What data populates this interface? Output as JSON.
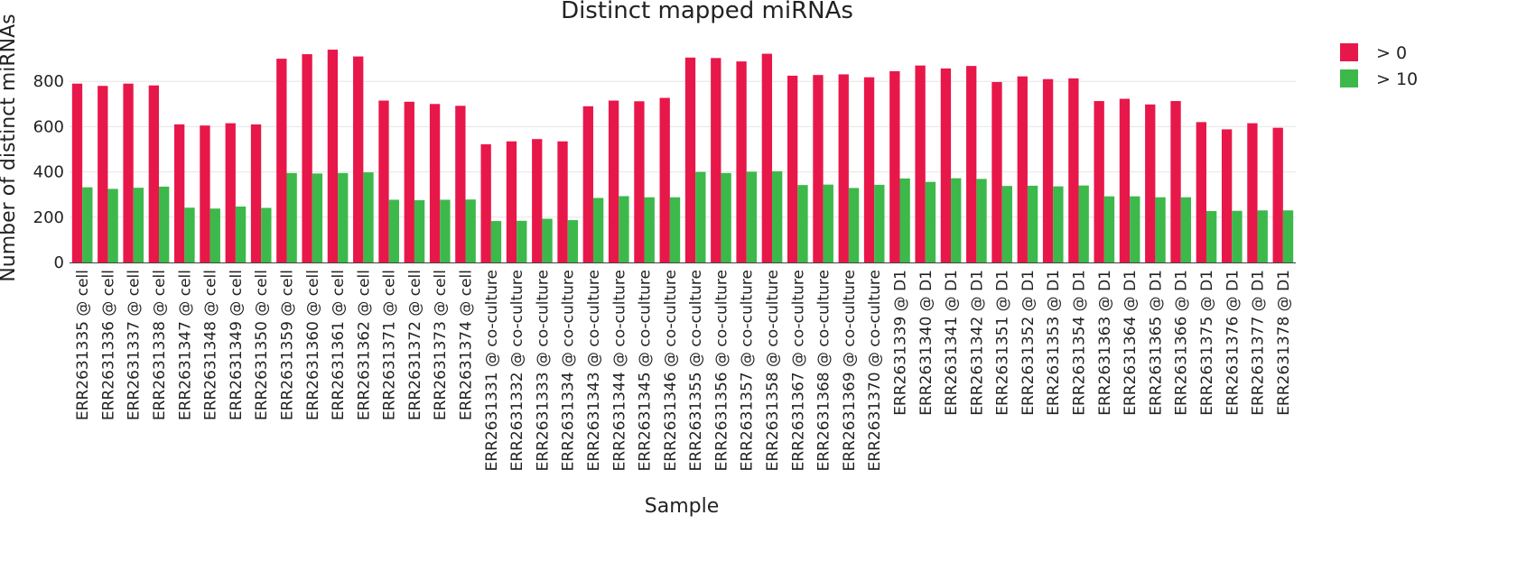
{
  "chart_data": {
    "type": "bar",
    "title": "Distinct mapped miRNAs",
    "xlabel": "Sample",
    "ylabel": "Number of distinct miRNAs",
    "ylim": [
      0,
      1000
    ],
    "yticks": [
      0,
      200,
      400,
      600,
      800
    ],
    "grid": true,
    "legend_position": "top-right",
    "categories": [
      "ERR2631335 @ cell",
      "ERR2631336 @ cell",
      "ERR2631337 @ cell",
      "ERR2631338 @ cell",
      "ERR2631347 @ cell",
      "ERR2631348 @ cell",
      "ERR2631349 @ cell",
      "ERR2631350 @ cell",
      "ERR2631359 @ cell",
      "ERR2631360 @ cell",
      "ERR2631361 @ cell",
      "ERR2631362 @ cell",
      "ERR2631371 @ cell",
      "ERR2631372 @ cell",
      "ERR2631373 @ cell",
      "ERR2631374 @ cell",
      "ERR2631331 @ co-culture",
      "ERR2631332 @ co-culture",
      "ERR2631333 @ co-culture",
      "ERR2631334 @ co-culture",
      "ERR2631343 @ co-culture",
      "ERR2631344 @ co-culture",
      "ERR2631345 @ co-culture",
      "ERR2631346 @ co-culture",
      "ERR2631355 @ co-culture",
      "ERR2631356 @ co-culture",
      "ERR2631357 @ co-culture",
      "ERR2631358 @ co-culture",
      "ERR2631367 @ co-culture",
      "ERR2631368 @ co-culture",
      "ERR2631369 @ co-culture",
      "ERR2631370 @ co-culture",
      "ERR2631339 @ D1",
      "ERR2631340 @ D1",
      "ERR2631341 @ D1",
      "ERR2631342 @ D1",
      "ERR2631351 @ D1",
      "ERR2631352 @ D1",
      "ERR2631353 @ D1",
      "ERR2631354 @ D1",
      "ERR2631363 @ D1",
      "ERR2631364 @ D1",
      "ERR2631365 @ D1",
      "ERR2631366 @ D1",
      "ERR2631375 @ D1",
      "ERR2631376 @ D1",
      "ERR2631377 @ D1",
      "ERR2631378 @ D1"
    ],
    "series": [
      {
        "name": "> 0",
        "color": "#E8174A",
        "values": [
          790,
          780,
          790,
          782,
          610,
          605,
          615,
          610,
          900,
          920,
          940,
          910,
          715,
          710,
          700,
          692,
          522,
          535,
          545,
          535,
          690,
          715,
          712,
          727,
          905,
          903,
          888,
          922,
          825,
          828,
          831,
          818,
          845,
          870,
          857,
          868,
          797,
          822,
          810,
          813,
          713,
          723,
          698,
          713,
          620,
          588,
          615,
          595
        ]
      },
      {
        "name": "> 10",
        "color": "#3CB94A",
        "values": [
          332,
          325,
          330,
          335,
          242,
          238,
          247,
          241,
          395,
          393,
          395,
          398,
          277,
          275,
          277,
          278,
          183,
          184,
          193,
          187,
          285,
          293,
          288,
          288,
          400,
          395,
          401,
          403,
          342,
          344,
          329,
          343,
          371,
          356,
          372,
          369,
          338,
          339,
          336,
          340,
          292,
          292,
          288,
          288,
          227,
          228,
          230,
          230
        ]
      }
    ]
  }
}
